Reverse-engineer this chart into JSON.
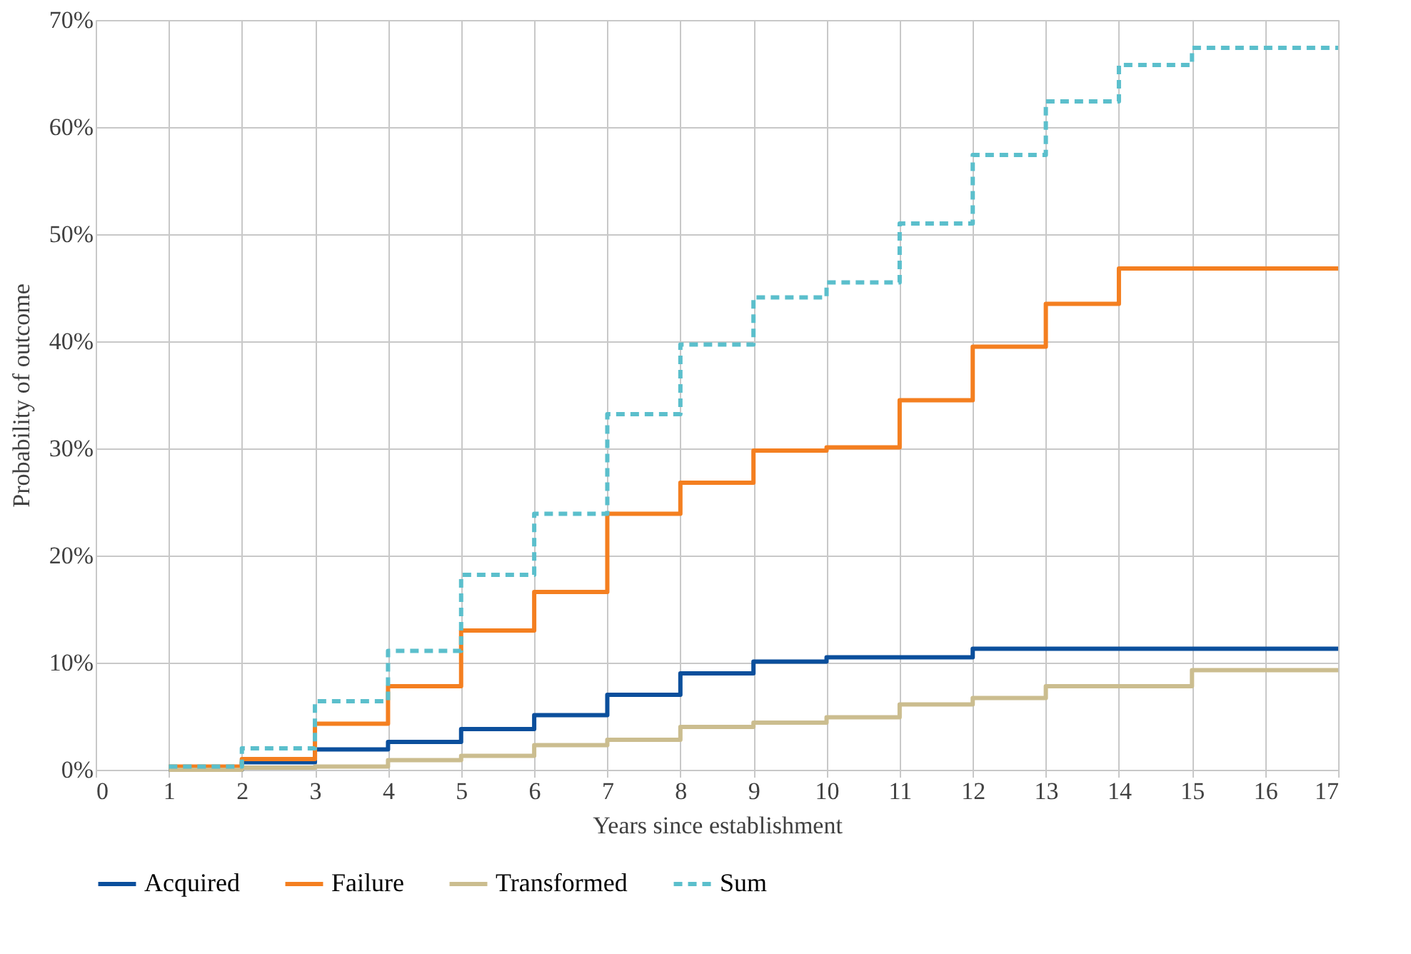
{
  "chart_data": {
    "type": "step",
    "xlabel": "Years since establishment",
    "ylabel": "Probability of outcome",
    "x": [
      1,
      2,
      3,
      4,
      5,
      6,
      7,
      8,
      9,
      10,
      11,
      12,
      13,
      14,
      15,
      16,
      17
    ],
    "xlim": [
      0,
      17
    ],
    "xticks": [
      0,
      1,
      2,
      3,
      4,
      5,
      6,
      7,
      8,
      9,
      10,
      11,
      12,
      13,
      14,
      15,
      16,
      17
    ],
    "ylim": [
      0,
      70
    ],
    "yticks": [
      {
        "value": 0,
        "label": "0%"
      },
      {
        "value": 10,
        "label": "10%"
      },
      {
        "value": 20,
        "label": "20%"
      },
      {
        "value": 30,
        "label": "30%"
      },
      {
        "value": 40,
        "label": "40%"
      },
      {
        "value": 50,
        "label": "50%"
      },
      {
        "value": 60,
        "label": "60%"
      },
      {
        "value": 70,
        "label": "70%"
      }
    ],
    "grid": true,
    "legend": "bottom",
    "marker": "none",
    "series": [
      {
        "name": "Acquired",
        "color": "#0b4f9c",
        "line_style": "solid",
        "values": [
          0,
          0.7,
          1.9,
          2.6,
          3.8,
          5.1,
          7.0,
          9.0,
          10.1,
          10.5,
          10.5,
          11.3,
          11.3,
          11.3,
          11.3,
          11.3,
          11.3
        ]
      },
      {
        "name": "Failure",
        "color": "#f47f20",
        "line_style": "solid",
        "values": [
          0.3,
          1.0,
          4.3,
          7.8,
          13.0,
          16.6,
          23.9,
          26.8,
          29.8,
          30.1,
          34.5,
          39.5,
          43.5,
          46.8,
          46.8,
          46.8,
          46.8
        ]
      },
      {
        "name": "Transformed",
        "color": "#cbbd8f",
        "line_style": "solid",
        "values": [
          0,
          0.2,
          0.3,
          0.9,
          1.3,
          2.3,
          2.8,
          4.0,
          4.4,
          4.9,
          6.1,
          6.7,
          7.8,
          7.8,
          9.3,
          9.3,
          9.3
        ]
      },
      {
        "name": "Sum",
        "color": "#5bbfcc",
        "line_style": "dashed",
        "values": [
          0.3,
          2.0,
          6.4,
          11.1,
          18.2,
          23.9,
          33.2,
          39.7,
          44.1,
          45.5,
          51.0,
          57.4,
          62.4,
          65.8,
          67.4,
          67.4,
          67.4
        ]
      }
    ]
  }
}
